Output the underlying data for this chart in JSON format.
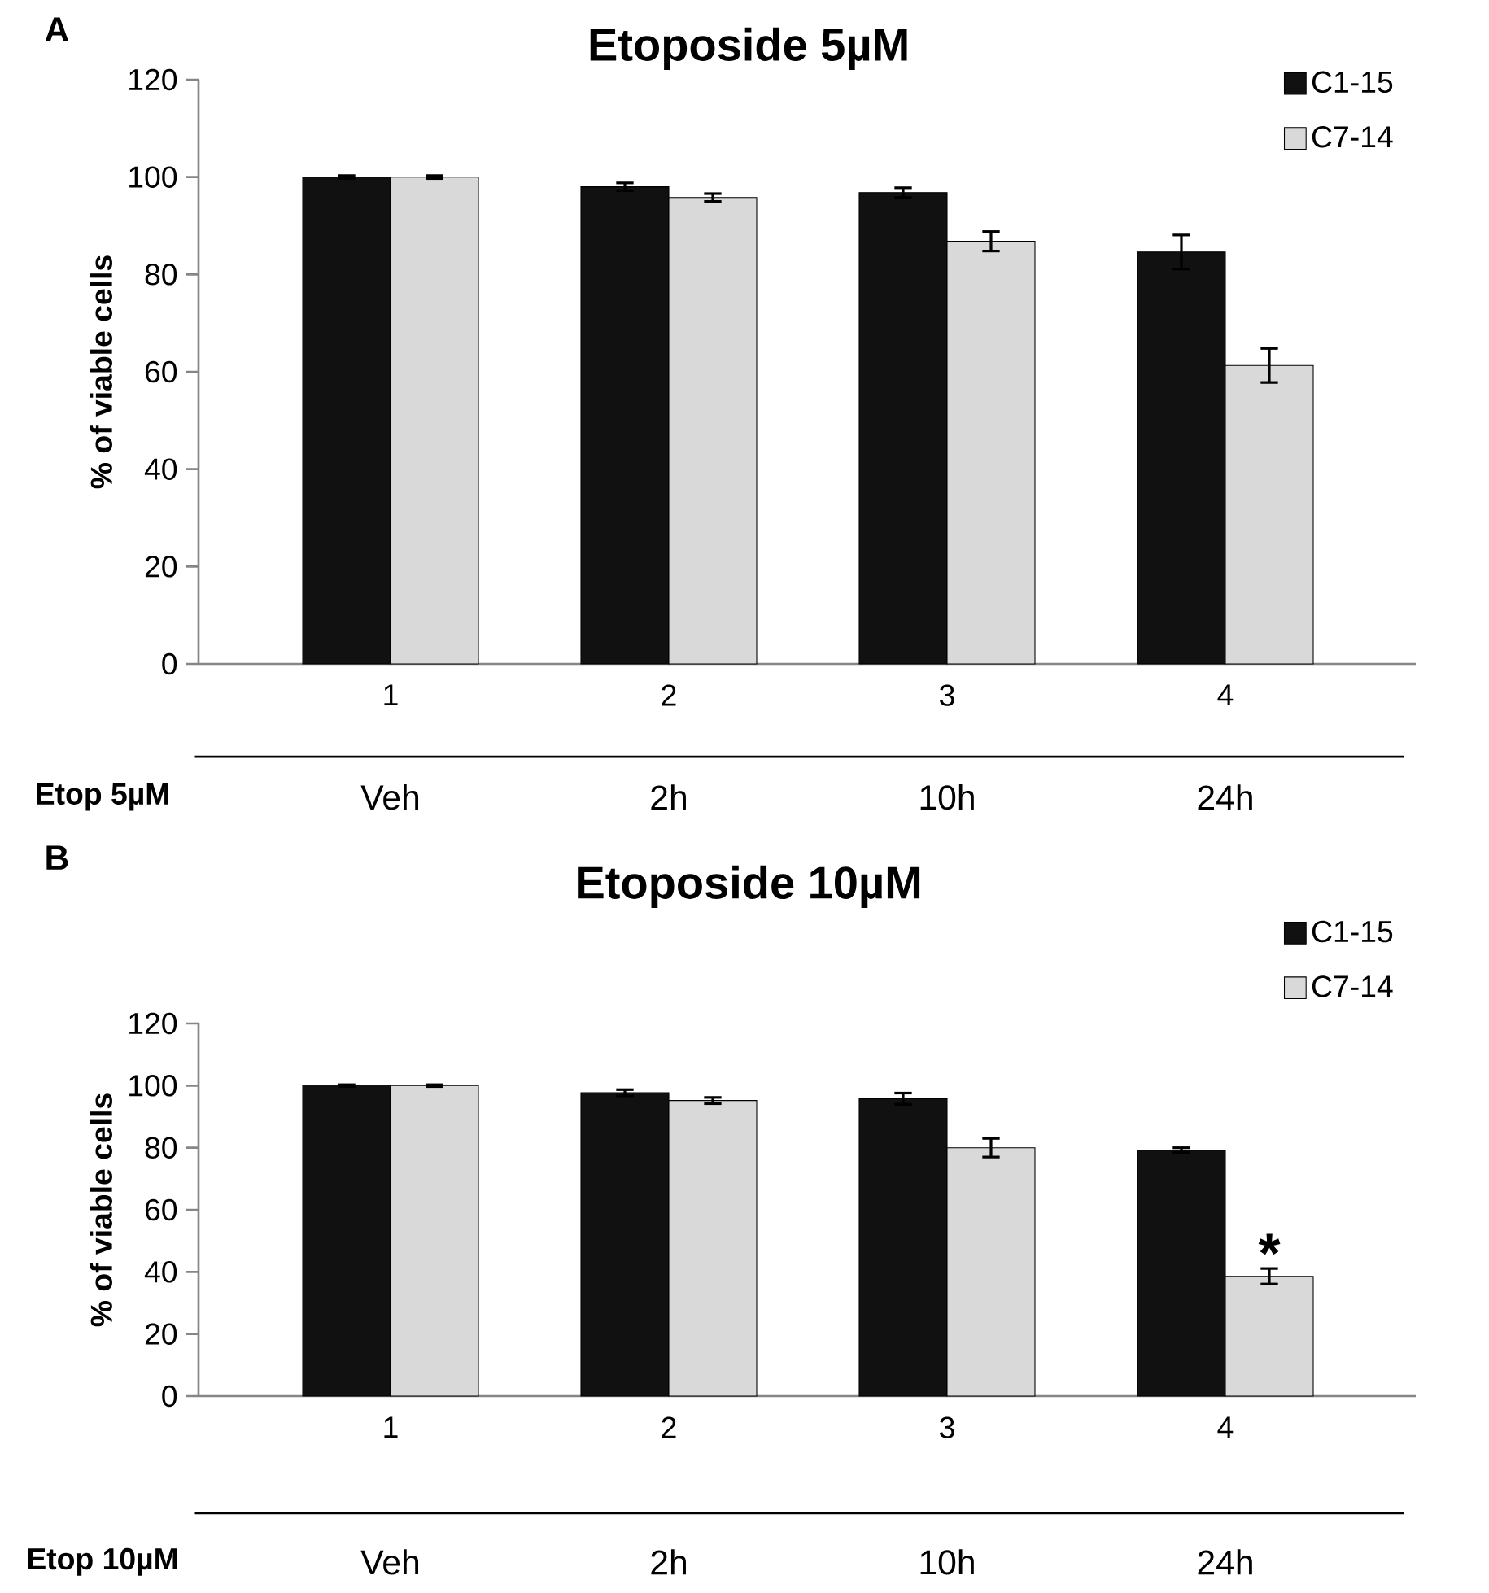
{
  "chart_data": [
    {
      "type": "bar",
      "title": "Etoposide 5µM",
      "ylabel": "% of viable cells",
      "categories": [
        "1",
        "2",
        "3",
        "4"
      ],
      "series": [
        {
          "name": "C1-15",
          "color": "#111111",
          "values": [
            100,
            98,
            96.8,
            84.6
          ],
          "errors": [
            0.3,
            0.8,
            1,
            3.5
          ]
        },
        {
          "name": "C7-14",
          "color": "#d9d9d9",
          "values": [
            100,
            95.8,
            86.8,
            61.3
          ],
          "errors": [
            0.3,
            0.8,
            2,
            3.5
          ]
        }
      ],
      "ylim": [
        0,
        120
      ],
      "yticks": [
        0,
        20,
        40,
        60,
        80,
        100,
        120
      ],
      "legend": "top right",
      "annotations": [
        "A",
        "Etop 5µM",
        "Veh",
        "2h",
        "10h",
        "24h"
      ]
    },
    {
      "type": "bar",
      "title": "Etoposide 10µM",
      "ylabel": "% of viable cells",
      "categories": [
        "1",
        "2",
        "3",
        "4"
      ],
      "series": [
        {
          "name": "C1-15",
          "color": "#111111",
          "values": [
            100,
            97.7,
            95.8,
            79.2
          ],
          "errors": [
            0.3,
            1,
            1.8,
            0.8
          ]
        },
        {
          "name": "C7-14",
          "color": "#d9d9d9",
          "values": [
            100,
            95.2,
            80,
            38.6
          ],
          "errors": [
            0.3,
            1,
            3,
            2.5
          ]
        }
      ],
      "ylim": [
        0,
        120
      ],
      "yticks": [
        0,
        20,
        40,
        60,
        80,
        100,
        120
      ],
      "legend": "top right",
      "annotations": [
        "B",
        "Etop 10µM",
        "Veh",
        "2h",
        "10h",
        "24h",
        {
          "text": "*",
          "x": "4",
          "y": 46
        }
      ]
    }
  ]
}
